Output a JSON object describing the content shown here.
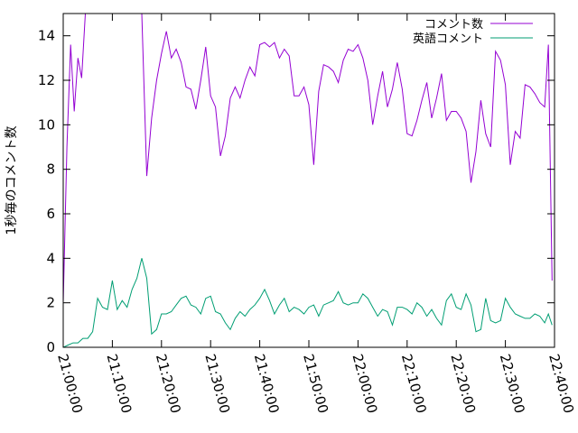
{
  "chart_data": {
    "type": "line",
    "title": "",
    "xlabel": "",
    "ylabel": "1秒毎のコメント数",
    "xlim": [
      "21:00:00",
      "22:40:00"
    ],
    "ylim": [
      0,
      15
    ],
    "xticks": [
      "21:00:00",
      "21:10:00",
      "21:20:00",
      "21:30:00",
      "21:40:00",
      "21:50:00",
      "22:00:00",
      "22:10:00",
      "22:20:00",
      "22:30:00",
      "22:40:00"
    ],
    "yticks": [
      0,
      2,
      4,
      6,
      8,
      10,
      12,
      14
    ],
    "grid": false,
    "legend_position": "top-right",
    "series": [
      {
        "name": "コメント数",
        "color": "#9400d3",
        "points": [
          [
            "21:00:00",
            2.0
          ],
          [
            "21:00:45",
            9.0
          ],
          [
            "21:01:30",
            13.6
          ],
          [
            "21:02:15",
            10.6
          ],
          [
            "21:03:00",
            13.0
          ],
          [
            "21:03:45",
            12.1
          ],
          [
            "21:04:30",
            15.0
          ],
          [
            "21:05:15",
            15.0
          ],
          [
            "21:06:00",
            15.0
          ],
          [
            "21:07:00",
            15.0
          ],
          [
            "21:08:00",
            15.0
          ],
          [
            "21:09:00",
            15.0
          ],
          [
            "21:10:00",
            15.0
          ],
          [
            "21:11:00",
            15.0
          ],
          [
            "21:12:00",
            15.0
          ],
          [
            "21:13:00",
            15.0
          ],
          [
            "21:14:00",
            15.0
          ],
          [
            "21:15:00",
            15.0
          ],
          [
            "21:16:00",
            15.0
          ],
          [
            "21:17:00",
            7.7
          ],
          [
            "21:18:00",
            10.3
          ],
          [
            "21:19:00",
            12.0
          ],
          [
            "21:20:00",
            13.2
          ],
          [
            "21:21:00",
            14.2
          ],
          [
            "21:22:00",
            13.0
          ],
          [
            "21:23:00",
            13.4
          ],
          [
            "21:24:00",
            12.8
          ],
          [
            "21:25:00",
            11.7
          ],
          [
            "21:26:00",
            11.6
          ],
          [
            "21:27:00",
            10.7
          ],
          [
            "21:28:00",
            12.0
          ],
          [
            "21:29:00",
            13.5
          ],
          [
            "21:30:00",
            11.3
          ],
          [
            "21:31:00",
            10.8
          ],
          [
            "21:32:00",
            8.6
          ],
          [
            "21:33:00",
            9.5
          ],
          [
            "21:34:00",
            11.2
          ],
          [
            "21:35:00",
            11.7
          ],
          [
            "21:36:00",
            11.2
          ],
          [
            "21:37:00",
            12.0
          ],
          [
            "21:38:00",
            12.6
          ],
          [
            "21:39:00",
            12.2
          ],
          [
            "21:40:00",
            13.6
          ],
          [
            "21:41:00",
            13.7
          ],
          [
            "21:42:00",
            13.5
          ],
          [
            "21:43:00",
            13.7
          ],
          [
            "21:44:00",
            13.0
          ],
          [
            "21:45:00",
            13.4
          ],
          [
            "21:46:00",
            13.1
          ],
          [
            "21:47:00",
            11.3
          ],
          [
            "21:48:00",
            11.3
          ],
          [
            "21:49:00",
            11.7
          ],
          [
            "21:50:00",
            10.9
          ],
          [
            "21:51:00",
            8.2
          ],
          [
            "21:52:00",
            11.5
          ],
          [
            "21:53:00",
            12.7
          ],
          [
            "21:54:00",
            12.6
          ],
          [
            "21:55:00",
            12.4
          ],
          [
            "21:56:00",
            11.9
          ],
          [
            "21:57:00",
            12.9
          ],
          [
            "21:58:00",
            13.4
          ],
          [
            "21:59:00",
            13.3
          ],
          [
            "22:00:00",
            13.6
          ],
          [
            "22:01:00",
            13.0
          ],
          [
            "22:02:00",
            12.0
          ],
          [
            "22:03:00",
            10.0
          ],
          [
            "22:04:00",
            11.3
          ],
          [
            "22:05:00",
            12.4
          ],
          [
            "22:06:00",
            10.8
          ],
          [
            "22:07:00",
            11.6
          ],
          [
            "22:08:00",
            12.8
          ],
          [
            "22:09:00",
            11.6
          ],
          [
            "22:10:00",
            9.6
          ],
          [
            "22:11:00",
            9.5
          ],
          [
            "22:12:00",
            10.2
          ],
          [
            "22:13:00",
            11.1
          ],
          [
            "22:14:00",
            11.9
          ],
          [
            "22:15:00",
            10.3
          ],
          [
            "22:16:00",
            11.2
          ],
          [
            "22:17:00",
            12.3
          ],
          [
            "22:18:00",
            10.2
          ],
          [
            "22:19:00",
            10.6
          ],
          [
            "22:20:00",
            10.6
          ],
          [
            "22:21:00",
            10.3
          ],
          [
            "22:22:00",
            9.7
          ],
          [
            "22:23:00",
            7.4
          ],
          [
            "22:24:00",
            8.8
          ],
          [
            "22:25:00",
            11.1
          ],
          [
            "22:26:00",
            9.6
          ],
          [
            "22:27:00",
            9.0
          ],
          [
            "22:28:00",
            13.3
          ],
          [
            "22:29:00",
            12.9
          ],
          [
            "22:30:00",
            11.8
          ],
          [
            "22:31:00",
            8.2
          ],
          [
            "22:32:00",
            9.7
          ],
          [
            "22:33:00",
            9.4
          ],
          [
            "22:34:00",
            11.8
          ],
          [
            "22:35:00",
            11.7
          ],
          [
            "22:36:00",
            11.4
          ],
          [
            "22:37:00",
            11.0
          ],
          [
            "22:38:00",
            10.8
          ],
          [
            "22:38:45",
            13.6
          ],
          [
            "22:39:30",
            3.0
          ]
        ]
      },
      {
        "name": "英語コメント",
        "color": "#009e73",
        "points": [
          [
            "21:00:00",
            0.0
          ],
          [
            "21:01:00",
            0.1
          ],
          [
            "21:02:00",
            0.2
          ],
          [
            "21:03:00",
            0.2
          ],
          [
            "21:04:00",
            0.4
          ],
          [
            "21:05:00",
            0.4
          ],
          [
            "21:06:00",
            0.7
          ],
          [
            "21:07:00",
            2.2
          ],
          [
            "21:08:00",
            1.8
          ],
          [
            "21:09:00",
            1.7
          ],
          [
            "21:10:00",
            3.0
          ],
          [
            "21:11:00",
            1.7
          ],
          [
            "21:12:00",
            2.1
          ],
          [
            "21:13:00",
            1.8
          ],
          [
            "21:14:00",
            2.6
          ],
          [
            "21:15:00",
            3.1
          ],
          [
            "21:16:00",
            4.0
          ],
          [
            "21:17:00",
            3.1
          ],
          [
            "21:18:00",
            0.6
          ],
          [
            "21:19:00",
            0.8
          ],
          [
            "21:20:00",
            1.5
          ],
          [
            "21:21:00",
            1.5
          ],
          [
            "21:22:00",
            1.6
          ],
          [
            "21:23:00",
            1.9
          ],
          [
            "21:24:00",
            2.2
          ],
          [
            "21:25:00",
            2.3
          ],
          [
            "21:26:00",
            1.9
          ],
          [
            "21:27:00",
            1.8
          ],
          [
            "21:28:00",
            1.5
          ],
          [
            "21:29:00",
            2.2
          ],
          [
            "21:30:00",
            2.3
          ],
          [
            "21:31:00",
            1.6
          ],
          [
            "21:32:00",
            1.5
          ],
          [
            "21:33:00",
            1.1
          ],
          [
            "21:34:00",
            0.8
          ],
          [
            "21:35:00",
            1.3
          ],
          [
            "21:36:00",
            1.6
          ],
          [
            "21:37:00",
            1.4
          ],
          [
            "21:38:00",
            1.7
          ],
          [
            "21:39:00",
            1.9
          ],
          [
            "21:40:00",
            2.2
          ],
          [
            "21:41:00",
            2.6
          ],
          [
            "21:42:00",
            2.1
          ],
          [
            "21:43:00",
            1.5
          ],
          [
            "21:44:00",
            1.9
          ],
          [
            "21:45:00",
            2.2
          ],
          [
            "21:46:00",
            1.6
          ],
          [
            "21:47:00",
            1.8
          ],
          [
            "21:48:00",
            1.7
          ],
          [
            "21:49:00",
            1.5
          ],
          [
            "21:50:00",
            1.8
          ],
          [
            "21:51:00",
            1.9
          ],
          [
            "21:52:00",
            1.4
          ],
          [
            "21:53:00",
            1.9
          ],
          [
            "21:54:00",
            2.0
          ],
          [
            "21:55:00",
            2.1
          ],
          [
            "21:56:00",
            2.5
          ],
          [
            "21:57:00",
            2.0
          ],
          [
            "21:58:00",
            1.9
          ],
          [
            "21:59:00",
            2.0
          ],
          [
            "22:00:00",
            2.0
          ],
          [
            "22:01:00",
            2.4
          ],
          [
            "22:02:00",
            2.2
          ],
          [
            "22:03:00",
            1.8
          ],
          [
            "22:04:00",
            1.4
          ],
          [
            "22:05:00",
            1.7
          ],
          [
            "22:06:00",
            1.6
          ],
          [
            "22:07:00",
            1.0
          ],
          [
            "22:08:00",
            1.8
          ],
          [
            "22:09:00",
            1.8
          ],
          [
            "22:10:00",
            1.7
          ],
          [
            "22:11:00",
            1.5
          ],
          [
            "22:12:00",
            2.0
          ],
          [
            "22:13:00",
            1.8
          ],
          [
            "22:14:00",
            1.4
          ],
          [
            "22:15:00",
            1.7
          ],
          [
            "22:16:00",
            1.3
          ],
          [
            "22:17:00",
            1.0
          ],
          [
            "22:18:00",
            2.1
          ],
          [
            "22:19:00",
            2.4
          ],
          [
            "22:20:00",
            1.8
          ],
          [
            "22:21:00",
            1.7
          ],
          [
            "22:22:00",
            2.4
          ],
          [
            "22:23:00",
            1.9
          ],
          [
            "22:24:00",
            0.7
          ],
          [
            "22:25:00",
            0.8
          ],
          [
            "22:26:00",
            2.2
          ],
          [
            "22:27:00",
            1.2
          ],
          [
            "22:28:00",
            1.1
          ],
          [
            "22:29:00",
            1.2
          ],
          [
            "22:30:00",
            2.2
          ],
          [
            "22:31:00",
            1.8
          ],
          [
            "22:32:00",
            1.5
          ],
          [
            "22:33:00",
            1.4
          ],
          [
            "22:34:00",
            1.3
          ],
          [
            "22:35:00",
            1.3
          ],
          [
            "22:36:00",
            1.5
          ],
          [
            "22:37:00",
            1.4
          ],
          [
            "22:38:00",
            1.1
          ],
          [
            "22:38:45",
            1.5
          ],
          [
            "22:39:30",
            1.0
          ]
        ]
      }
    ]
  }
}
